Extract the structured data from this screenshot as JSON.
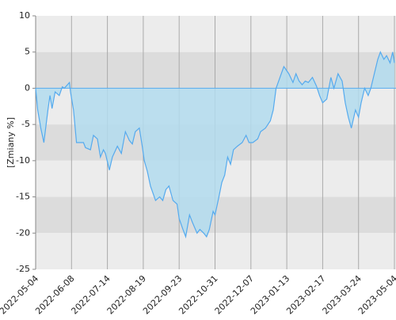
{
  "chart_data": {
    "type": "area",
    "ylabel": "[Zmiany %]",
    "x": [
      "2022-05-04",
      "2022-05-06",
      "2022-05-09",
      "2022-05-12",
      "2022-05-16",
      "2022-05-18",
      "2022-05-20",
      "2022-05-23",
      "2022-05-27",
      "2022-05-30",
      "2022-06-01",
      "2022-06-06",
      "2022-06-07",
      "2022-06-10",
      "2022-06-13",
      "2022-06-16",
      "2022-06-20",
      "2022-06-22",
      "2022-06-27",
      "2022-06-30",
      "2022-07-04",
      "2022-07-07",
      "2022-07-10",
      "2022-07-12",
      "2022-07-16",
      "2022-07-19",
      "2022-07-24",
      "2022-07-28",
      "2022-08-01",
      "2022-08-05",
      "2022-08-08",
      "2022-08-11",
      "2022-08-15",
      "2022-08-18",
      "2022-08-20",
      "2022-08-23",
      "2022-08-26",
      "2022-08-31",
      "2022-09-04",
      "2022-09-07",
      "2022-09-10",
      "2022-09-13",
      "2022-09-17",
      "2022-09-21",
      "2022-09-23",
      "2022-09-27",
      "2022-09-30",
      "2022-10-04",
      "2022-10-07",
      "2022-10-12",
      "2022-10-15",
      "2022-10-19",
      "2022-10-22",
      "2022-10-25",
      "2022-10-29",
      "2022-10-31",
      "2022-11-04",
      "2022-11-07",
      "2022-11-10",
      "2022-11-13",
      "2022-11-16",
      "2022-11-19",
      "2022-11-23",
      "2022-11-28",
      "2022-12-02",
      "2022-12-05",
      "2022-12-09",
      "2022-12-14",
      "2022-12-17",
      "2022-12-22",
      "2022-12-27",
      "2022-12-30",
      "2023-01-02",
      "2023-01-06",
      "2023-01-10",
      "2023-01-15",
      "2023-01-19",
      "2023-01-22",
      "2023-01-25",
      "2023-01-28",
      "2023-01-31",
      "2023-02-03",
      "2023-02-07",
      "2023-02-11",
      "2023-02-14",
      "2023-02-17",
      "2023-02-21",
      "2023-02-25",
      "2023-02-28",
      "2023-03-04",
      "2023-03-08",
      "2023-03-11",
      "2023-03-14",
      "2023-03-17",
      "2023-03-21",
      "2023-03-24",
      "2023-03-27",
      "2023-03-31",
      "2023-04-04",
      "2023-04-07",
      "2023-04-11",
      "2023-04-15",
      "2023-04-18",
      "2023-04-22",
      "2023-04-25",
      "2023-04-29",
      "2023-05-02",
      "2023-05-04"
    ],
    "values": [
      0,
      -3,
      -5.5,
      -7.5,
      -3,
      -1,
      -2.8,
      -0.5,
      -1,
      0.2,
      0,
      0.8,
      -0.5,
      -3,
      -7.5,
      -7.5,
      -7.5,
      -8.2,
      -8.5,
      -6.5,
      -7,
      -9.5,
      -8.5,
      -9,
      -11.3,
      -9.5,
      -8,
      -9,
      -6,
      -7.2,
      -7.7,
      -6,
      -5.5,
      -8,
      -10,
      -11.5,
      -13.5,
      -15.5,
      -15,
      -15.5,
      -14,
      -13.5,
      -15.5,
      -16,
      -18,
      -19.5,
      -20.5,
      -17.5,
      -18.5,
      -20,
      -19.5,
      -20,
      -20.5,
      -19.5,
      -17,
      -17.5,
      -15,
      -13,
      -12,
      -9.5,
      -10.5,
      -8.5,
      -8,
      -7.5,
      -6.5,
      -7.5,
      -7.5,
      -7,
      -6,
      -5.5,
      -4.5,
      -3,
      0,
      1.5,
      3,
      2,
      0.8,
      2,
      1,
      0.5,
      1,
      0.8,
      1.5,
      0.3,
      -1,
      -2,
      -1.5,
      1.5,
      0,
      2,
      1,
      -2,
      -4,
      -5.5,
      -3,
      -4,
      -2,
      0,
      -1,
      0,
      2,
      4,
      5,
      4,
      4.5,
      3.5,
      5,
      3.5
    ],
    "line_color": "#55aaee",
    "fill_color": "#b3dcee",
    "xlim": [
      "2022-05-04",
      "2023-05-04"
    ],
    "xticks": [
      "2022-05-04",
      "2022-06-08",
      "2022-07-14",
      "2022-08-19",
      "2022-09-23",
      "2022-10-31",
      "2022-12-07",
      "2023-01-13",
      "2023-02-17",
      "2023-03-24",
      "2023-05-04"
    ],
    "ylim": [
      -25,
      10
    ],
    "yticks": [
      10,
      5,
      0,
      -5,
      -10,
      -15,
      -20,
      -25
    ],
    "grid": true
  }
}
